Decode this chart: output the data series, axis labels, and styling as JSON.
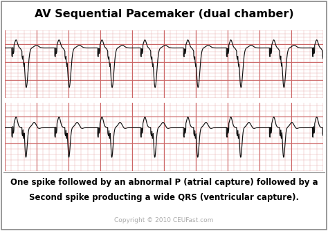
{
  "title": "AV Sequential Pacemaker (dual chamber)",
  "caption_line1": "One spike followed by an abnormal P (atrial capture) followed by a",
  "caption_line2": "Second spike producting a wide QRS (ventricular capture).",
  "copyright": "Copyright © 2010 CEUFast.com",
  "strip_bg": "#f5d0d0",
  "grid_minor_color": "#e8aaaa",
  "grid_major_color": "#cc6666",
  "ekg_color": "#111111",
  "title_fontsize": 11.5,
  "caption_fontsize": 8.5,
  "copyright_fontsize": 6.5,
  "beat_period": 1.35,
  "n_beats": 7
}
